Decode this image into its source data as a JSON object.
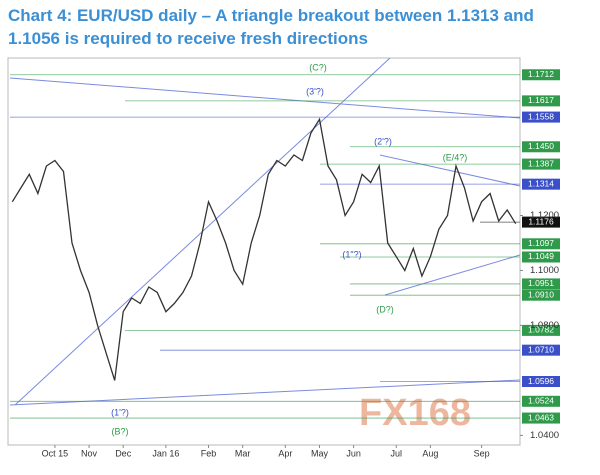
{
  "chart_data": {
    "type": "line",
    "title": "Chart 4: EUR/USD daily – A triangle breakout between 1.1313 and 1.1056 is required to receive fresh directions",
    "watermark": "FX168",
    "categories": [
      null,
      null,
      null,
      null,
      null,
      "Oct 15",
      null,
      null,
      null,
      "Nov",
      null,
      null,
      null,
      "Dec",
      null,
      null,
      null,
      null,
      "Jan 16",
      null,
      null,
      null,
      null,
      "Feb",
      null,
      null,
      null,
      "Mar",
      null,
      null,
      null,
      null,
      "Apr",
      null,
      null,
      null,
      "May",
      null,
      null,
      null,
      "Jun",
      null,
      null,
      null,
      null,
      "Jul",
      null,
      null,
      null,
      "Aug",
      null,
      null,
      null,
      null,
      null,
      "Sep",
      null,
      null,
      null,
      null
    ],
    "series": [
      {
        "color": "#333333",
        "values": [
          1.125,
          1.13,
          1.135,
          1.128,
          1.138,
          1.14,
          1.136,
          1.11,
          1.1,
          1.092,
          1.08,
          1.07,
          1.06,
          1.085,
          1.09,
          1.088,
          1.094,
          1.092,
          1.085,
          1.088,
          1.092,
          1.098,
          1.11,
          1.125,
          1.118,
          1.11,
          1.1,
          1.095,
          1.11,
          1.12,
          1.135,
          1.14,
          1.138,
          1.142,
          1.14,
          1.15,
          1.155,
          1.138,
          1.133,
          1.12,
          1.125,
          1.135,
          1.132,
          1.138,
          1.11,
          1.105,
          1.1,
          1.108,
          1.098,
          1.105,
          1.115,
          1.12,
          1.138,
          1.13,
          1.118,
          1.125,
          1.128,
          1.118,
          1.122,
          1.117
        ]
      }
    ],
    "ylim": [
      1.0365,
      1.1773
    ],
    "yticks": [
      {
        "value": 1.04,
        "label": "1.0400"
      },
      {
        "value": 1.08,
        "label": "1.0800"
      },
      {
        "value": 1.1,
        "label": "1.1000"
      },
      {
        "value": 1.12,
        "label": "1.1200"
      }
    ],
    "levels": [
      {
        "value": 1.1712,
        "label": "1.1712",
        "color": "#2e9a4a"
      },
      {
        "value": 1.1617,
        "label": "1.1617",
        "color": "#2e9a4a"
      },
      {
        "value": 1.1558,
        "label": "1.1558",
        "color": "#3a4fc8"
      },
      {
        "value": 1.145,
        "label": "1.1450",
        "color": "#2e9a4a"
      },
      {
        "value": 1.1387,
        "label": "1.1387",
        "color": "#2e9a4a"
      },
      {
        "value": 1.1314,
        "label": "1.1314",
        "color": "#3a4fc8"
      },
      {
        "value": 1.1176,
        "label": "1.1176",
        "color": "#111111"
      },
      {
        "value": 1.1097,
        "label": "1.1097",
        "color": "#2e9a4a"
      },
      {
        "value": 1.1049,
        "label": "1.1049",
        "color": "#2e9a4a"
      },
      {
        "value": 1.0951,
        "label": "1.0951",
        "color": "#2e9a4a"
      },
      {
        "value": 1.091,
        "label": "1.0910",
        "color": "#2e9a4a"
      },
      {
        "value": 1.0782,
        "label": "1.0782",
        "color": "#2e9a4a"
      },
      {
        "value": 1.071,
        "label": "1.0710",
        "color": "#3a4fc8"
      },
      {
        "value": 1.0596,
        "label": "1.0596",
        "color": "#3a4fc8"
      },
      {
        "value": 1.0524,
        "label": "1.0524",
        "color": "#2e9a4a"
      },
      {
        "value": 1.0463,
        "label": "1.0463",
        "color": "#2e9a4a"
      }
    ],
    "annotations": [
      {
        "text": "(C?)",
        "color": "#2e9a4a"
      },
      {
        "text": "(3'?)",
        "color": "#3a4fc8"
      },
      {
        "text": "(2'?)",
        "color": "#3a4fc8"
      },
      {
        "text": "(E/4?)",
        "color": "#2e9a4a"
      },
      {
        "text": "(1\"?)",
        "color": "#3a4fc8"
      },
      {
        "text": "(D?)",
        "color": "#2e9a4a"
      },
      {
        "text": "(1'?)",
        "color": "#3a4fc8"
      },
      {
        "text": "(B?)",
        "color": "#2e9a4a"
      }
    ]
  }
}
